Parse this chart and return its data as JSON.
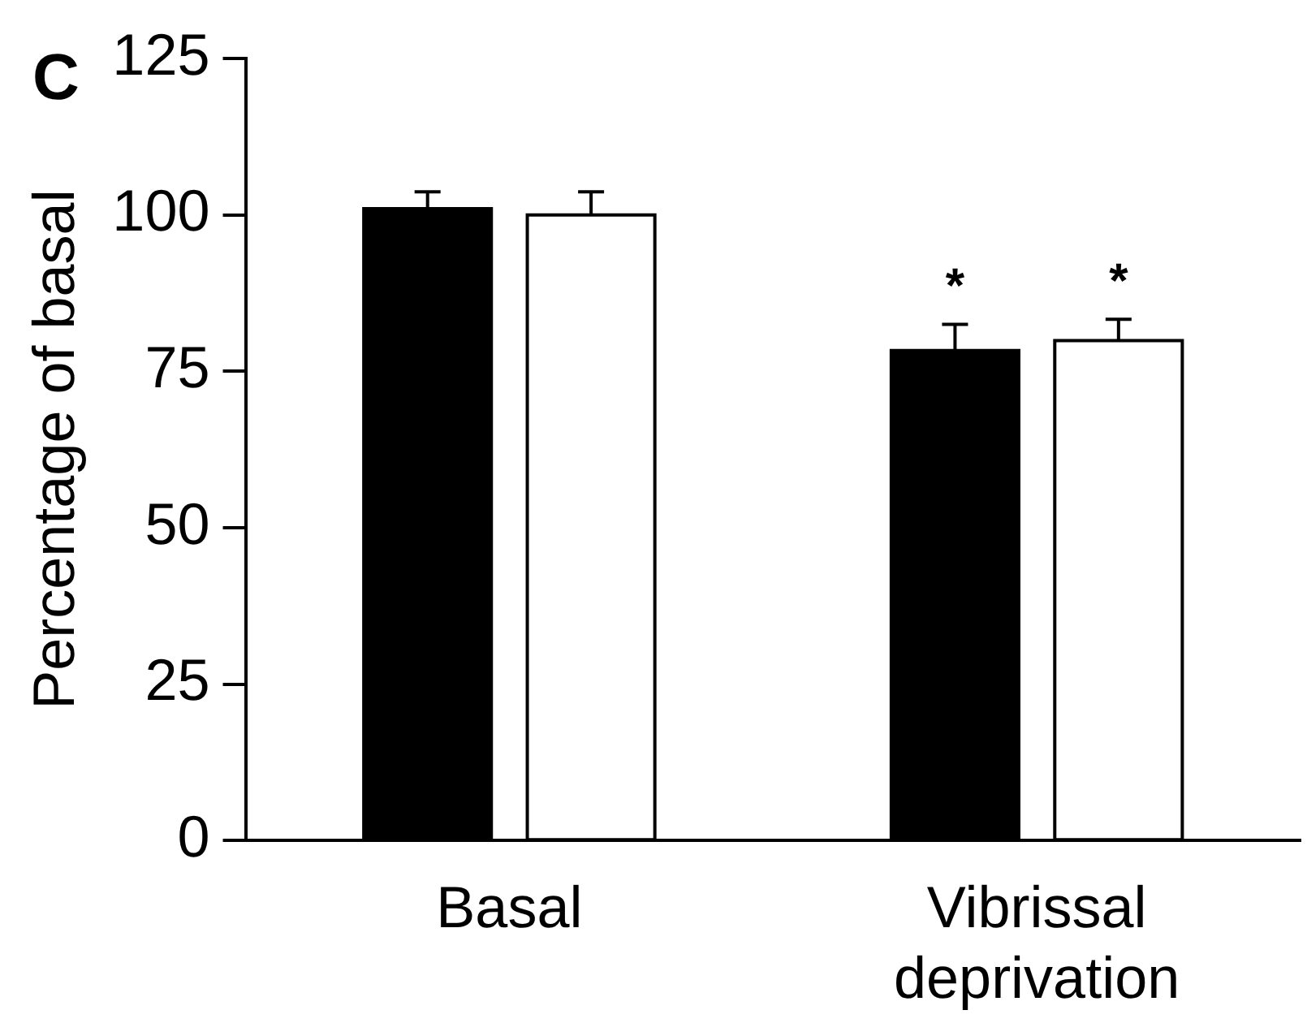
{
  "chart_data": {
    "type": "bar",
    "ylabel": "Percentage of basal",
    "categories": [
      "Basal",
      "Vibrissal deprivation"
    ],
    "series": [
      {
        "color": "#000000",
        "values": [
          101,
          78.3
        ],
        "errors": [
          [
            101,
            103.7
          ],
          [
            78.3,
            82.5
          ]
        ]
      },
      {
        "color": "#ffffff",
        "values": [
          100,
          79.9
        ],
        "errors": [
          [
            100,
            103.7
          ],
          [
            79.9,
            83.3
          ]
        ]
      }
    ],
    "ylim": [
      0,
      125
    ],
    "yticks": [
      0,
      25,
      50,
      75,
      100,
      125
    ],
    "grid": false,
    "legend": false,
    "annotations": [
      "C",
      "*",
      "*"
    ]
  }
}
